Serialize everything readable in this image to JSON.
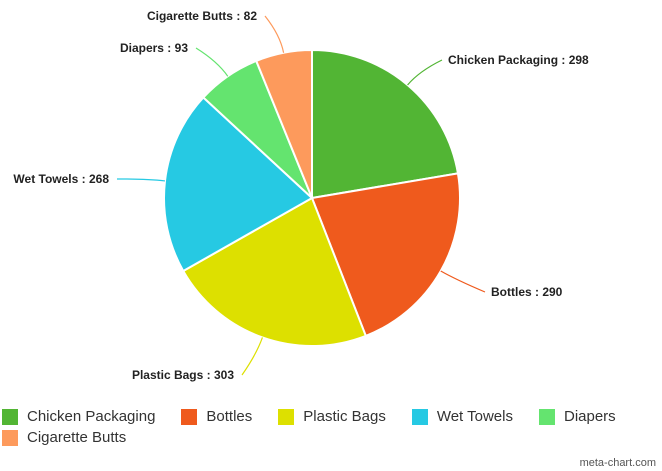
{
  "chart_data": {
    "type": "pie",
    "title": "",
    "categories": [
      "Chicken Packaging",
      "Bottles",
      "Plastic Bags",
      "Wet Towels",
      "Diapers",
      "Cigarette Butts"
    ],
    "values": [
      298,
      290,
      303,
      268,
      93,
      82
    ],
    "colors": [
      "#52b534",
      "#ef5a1d",
      "#dde000",
      "#26c9e3",
      "#64e46f",
      "#fd9a5c"
    ],
    "data_labels": [
      "Chicken Packaging : 298",
      "Bottles : 290",
      "Plastic Bags : 303",
      "Wet Towels : 268",
      "Diapers : 93",
      "Cigarette Butts : 82"
    ],
    "legend_position": "bottom-left"
  },
  "watermark": "meta-chart.com"
}
